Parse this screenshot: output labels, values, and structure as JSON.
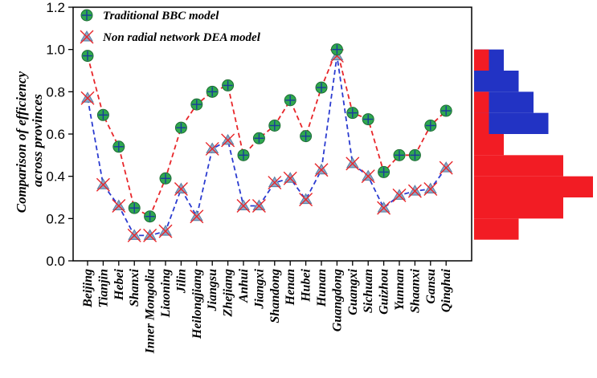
{
  "chart_data": {
    "type": "line",
    "title": "",
    "xlabel": "",
    "ylabel": "Comparison of efficiency across provinces",
    "ylabel_lines": [
      "Comparison of efficiency",
      "across provinces"
    ],
    "ylim": [
      0.0,
      1.2
    ],
    "yticks": [
      "0.0",
      "0.2",
      "0.4",
      "0.6",
      "0.8",
      "1.0",
      "1.2"
    ],
    "ytick_values": [
      0.0,
      0.2,
      0.4,
      0.6,
      0.8,
      1.0,
      1.2
    ],
    "legend_position": "top-left",
    "categories": [
      "Beijing",
      "Tianjin",
      "Hebei",
      "Shanxi",
      "Inner Mongolia",
      "Liaoning",
      "Jilin",
      "Heilongjiang",
      "Jiangsu",
      "Zhejiang",
      "Anhui",
      "Jiangxi",
      "Shandong",
      "Henan",
      "Hubei",
      "Hunan",
      "Guangdong",
      "Guangxi",
      "Sichuan",
      "Guizhou",
      "Yunnan",
      "Shaanxi",
      "Gansu",
      "Qinghai"
    ],
    "series": [
      {
        "name": "Traditional BBC model",
        "line_color": "#e8262a",
        "marker_fill": "#2fa84f",
        "marker_cross": "#1b3b9c",
        "values": [
          0.97,
          0.69,
          0.54,
          0.25,
          0.21,
          0.39,
          0.63,
          0.74,
          0.8,
          0.83,
          0.5,
          0.58,
          0.64,
          0.76,
          0.59,
          0.82,
          1.0,
          0.7,
          0.67,
          0.42,
          0.5,
          0.5,
          0.64,
          0.71
        ]
      },
      {
        "name": "Non radial network DEA model",
        "line_color": "#2b3bd0",
        "marker_fill": "#8aa9c9",
        "marker_cross": "#e8262a",
        "values": [
          0.77,
          0.36,
          0.26,
          0.12,
          0.12,
          0.14,
          0.34,
          0.21,
          0.53,
          0.57,
          0.26,
          0.26,
          0.37,
          0.39,
          0.29,
          0.43,
          0.97,
          0.46,
          0.4,
          0.25,
          0.31,
          0.33,
          0.34,
          0.44
        ]
      }
    ],
    "marginal_histograms": [
      {
        "series": "Traditional BBC model",
        "color": "#2233c4",
        "orientation": "horizontal",
        "bins": [
          {
            "from": 0.6,
            "to": 0.7,
            "count": 5
          },
          {
            "from": 0.7,
            "to": 0.8,
            "count": 4
          },
          {
            "from": 0.8,
            "to": 0.9,
            "count": 3
          },
          {
            "from": 0.9,
            "to": 1.0,
            "count": 2
          }
        ]
      },
      {
        "series": "Non radial network DEA model",
        "color": "#f21c24",
        "orientation": "horizontal",
        "bins": [
          {
            "from": 0.1,
            "to": 0.2,
            "count": 3
          },
          {
            "from": 0.2,
            "to": 0.3,
            "count": 6
          },
          {
            "from": 0.3,
            "to": 0.4,
            "count": 8
          },
          {
            "from": 0.4,
            "to": 0.5,
            "count": 6
          },
          {
            "from": 0.5,
            "to": 0.6,
            "count": 2
          },
          {
            "from": 0.6,
            "to": 0.7,
            "count": 1
          },
          {
            "from": 0.7,
            "to": 0.8,
            "count": 1
          },
          {
            "from": 0.9,
            "to": 1.0,
            "count": 1
          }
        ]
      }
    ]
  }
}
